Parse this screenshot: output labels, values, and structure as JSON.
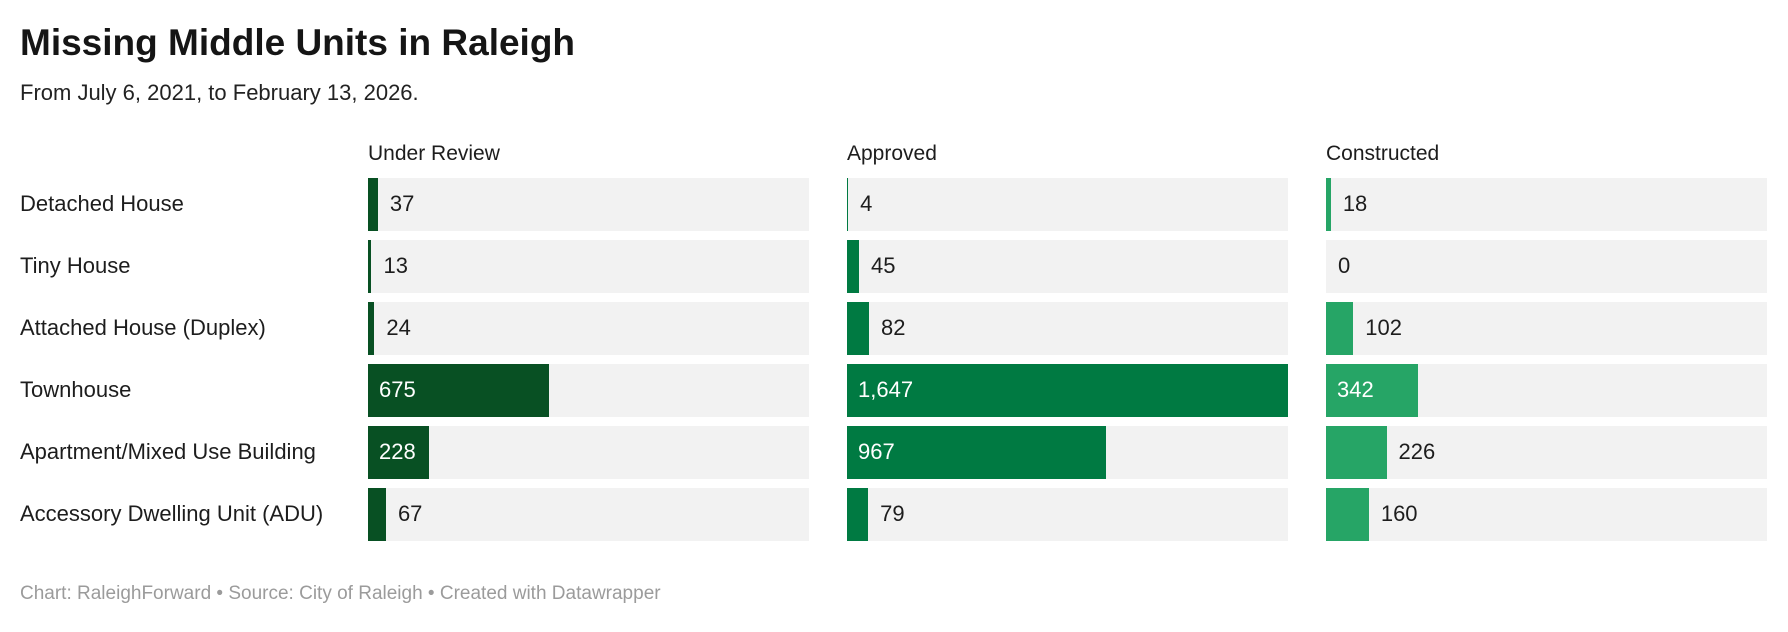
{
  "header": {
    "title": "Missing Middle Units in Raleigh",
    "subtitle": "From July 6, 2021, to February 13, 2026."
  },
  "chart_data": {
    "type": "bar",
    "orientation": "horizontal",
    "layout": "three-column small multiples, shared x scale",
    "title": "Missing Middle Units in Raleigh",
    "subtitle": "From July 6, 2021, to February 13, 2026.",
    "categories": [
      "Detached House",
      "Tiny House",
      "Attached House (Duplex)",
      "Townhouse",
      "Apartment/Mixed Use Building",
      "Accessory Dwelling Unit (ADU)"
    ],
    "series": [
      {
        "name": "Under Review",
        "color": "#085023",
        "values": [
          37,
          13,
          24,
          675,
          228,
          67
        ]
      },
      {
        "name": "Approved",
        "color": "#007a42",
        "values": [
          4,
          45,
          82,
          1647,
          967,
          79
        ]
      },
      {
        "name": "Constructed",
        "color": "#26a566",
        "values": [
          18,
          0,
          102,
          342,
          226,
          160
        ]
      }
    ],
    "xlim": [
      0,
      1647
    ],
    "grid": false,
    "legend_position": "column-headers",
    "track_color": "#f2f2f2",
    "value_label_color_inside": "#ffffff",
    "value_label_color_outside": "#1d1d1d"
  },
  "footer": {
    "text": "Chart: RaleighForward • Source: City of Raleigh • Created with Datawrapper"
  }
}
